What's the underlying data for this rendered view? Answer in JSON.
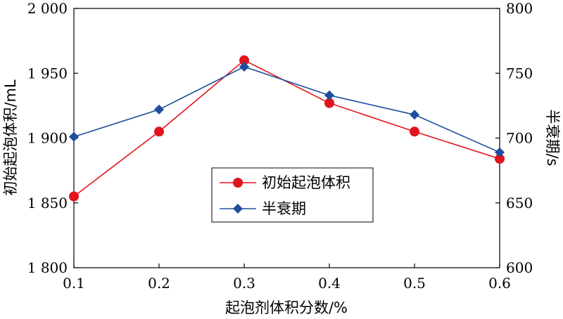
{
  "chart_data": {
    "type": "line",
    "x": [
      0.1,
      0.2,
      0.3,
      0.4,
      0.5,
      0.6
    ],
    "x_tick_labels": [
      "0.1",
      "0.2",
      "0.3",
      "0.4",
      "0.5",
      "0.6"
    ],
    "xlim": [
      0.1,
      0.6
    ],
    "xlabel": "起泡剂体积分数/%",
    "ylabel": "初始起泡体积/mL",
    "ylim": [
      1800,
      2000
    ],
    "y_tick_labels": [
      "1 800",
      "1 850",
      "1 900",
      "1 950",
      "2 000"
    ],
    "y_ticks": [
      1800,
      1850,
      1900,
      1950,
      2000
    ],
    "y2label": "半衰期/s",
    "y2lim": [
      600,
      800
    ],
    "y2_tick_labels": [
      "600",
      "650",
      "700",
      "750",
      "800"
    ],
    "y2_ticks": [
      600,
      650,
      700,
      750,
      800
    ],
    "grid": false,
    "legend_position": "center",
    "series": [
      {
        "name": "初始起泡体积",
        "axis": "left",
        "color": "#e0141e",
        "marker": "circle",
        "values": [
          1855,
          1905,
          1960,
          1927,
          1905,
          1884
        ]
      },
      {
        "name": "半衰期",
        "axis": "right",
        "color": "#1f4e9c",
        "marker": "diamond",
        "values": [
          701,
          722,
          755,
          733,
          718,
          689
        ]
      }
    ]
  }
}
